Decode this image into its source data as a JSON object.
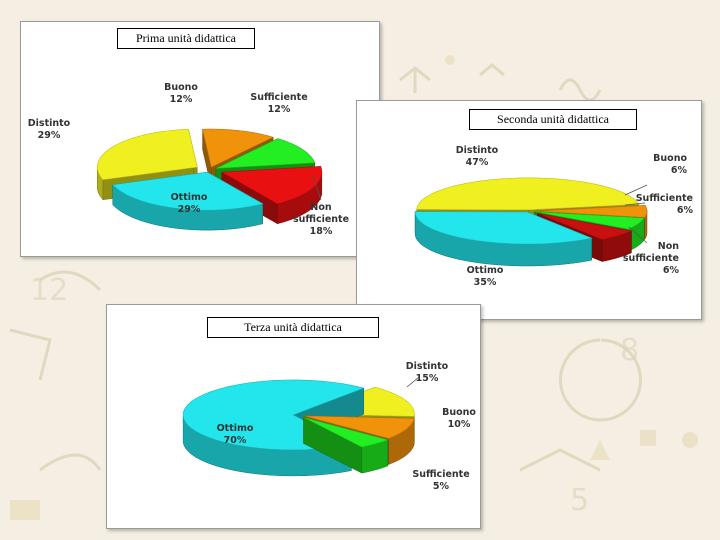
{
  "chart_data": [
    {
      "type": "pie",
      "title": "Prima unità didattica",
      "slices": [
        {
          "label": "Buono",
          "value": 12,
          "pct": "12%",
          "color": "#f0920a"
        },
        {
          "label": "Sufficiente",
          "value": 12,
          "pct": "12%",
          "color": "#22ee22"
        },
        {
          "label": "Non sufficiente",
          "value": 18,
          "pct": "18%",
          "color": "#e81010"
        },
        {
          "label": "Ottimo",
          "value": 29,
          "pct": "29%",
          "color": "#22e6ec"
        },
        {
          "label": "Distinto",
          "value": 29,
          "pct": "29%",
          "color": "#f0f020"
        }
      ]
    },
    {
      "type": "pie",
      "title": "Seconda unità didattica",
      "slices": [
        {
          "label": "Buono",
          "value": 6,
          "pct": "6%",
          "color": "#f0920a"
        },
        {
          "label": "Sufficiente",
          "value": 6,
          "pct": "6%",
          "color": "#22ee22"
        },
        {
          "label": "Non sufficiente",
          "value": 6,
          "pct": "6%",
          "color": "#c81010"
        },
        {
          "label": "Ottimo",
          "value": 35,
          "pct": "35%",
          "color": "#22e6ec"
        },
        {
          "label": "Distinto",
          "value": 47,
          "pct": "47%",
          "color": "#f0f020"
        }
      ]
    },
    {
      "type": "pie",
      "title": "Terza unità didattica",
      "slices": [
        {
          "label": "Distinto",
          "value": 15,
          "pct": "15%",
          "color": "#f0f020"
        },
        {
          "label": "Buono",
          "value": 10,
          "pct": "10%",
          "color": "#f0920a"
        },
        {
          "label": "Sufficiente",
          "value": 5,
          "pct": "5%",
          "color": "#22ee22"
        },
        {
          "label": "Ottimo",
          "value": 70,
          "pct": "70%",
          "color": "#22e6ec"
        }
      ]
    }
  ]
}
